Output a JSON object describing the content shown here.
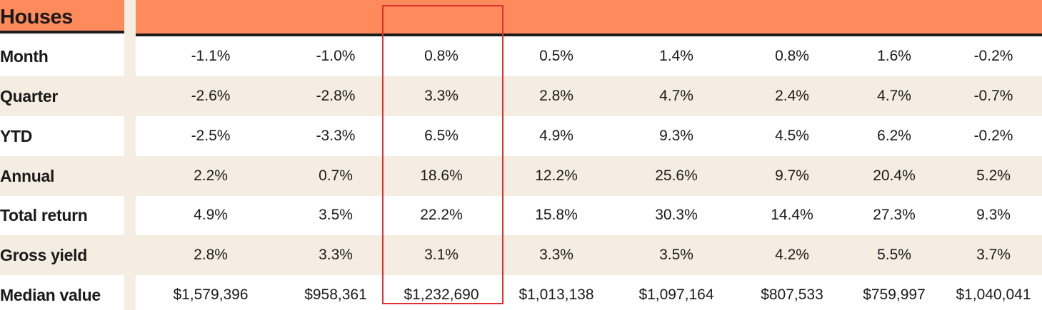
{
  "table": {
    "title": "Houses",
    "rows": [
      {
        "label": "Month",
        "values": [
          "-1.1%",
          "-1.0%",
          "0.8%",
          "0.5%",
          "1.4%",
          "0.8%",
          "1.6%",
          "-0.2%"
        ]
      },
      {
        "label": "Quarter",
        "values": [
          "-2.6%",
          "-2.8%",
          "3.3%",
          "2.8%",
          "4.7%",
          "2.4%",
          "4.7%",
          "-0.7%"
        ]
      },
      {
        "label": "YTD",
        "values": [
          "-2.5%",
          "-3.3%",
          "6.5%",
          "4.9%",
          "9.3%",
          "4.5%",
          "6.2%",
          "-0.2%"
        ]
      },
      {
        "label": "Annual",
        "values": [
          "2.2%",
          "0.7%",
          "18.6%",
          "12.2%",
          "25.6%",
          "9.7%",
          "20.4%",
          "5.2%"
        ]
      },
      {
        "label": "Total return",
        "values": [
          "4.9%",
          "3.5%",
          "22.2%",
          "15.8%",
          "30.3%",
          "14.4%",
          "27.3%",
          "9.3%"
        ]
      },
      {
        "label": "Gross yield",
        "values": [
          "2.8%",
          "3.3%",
          "3.1%",
          "3.3%",
          "3.5%",
          "4.2%",
          "5.5%",
          "3.7%"
        ]
      },
      {
        "label": "Median value",
        "values": [
          "$1,579,396",
          "$958,361",
          "$1,232,690",
          "$1,013,138",
          "$1,097,164",
          "$807,533",
          "$759,997",
          "$1,040,041"
        ]
      }
    ]
  },
  "colors": {
    "header": "#ff8a5c",
    "shade": "#f6ede2",
    "rule": "#1c1c1c",
    "highlight": "#e03131"
  },
  "highlight_column_index": 2
}
